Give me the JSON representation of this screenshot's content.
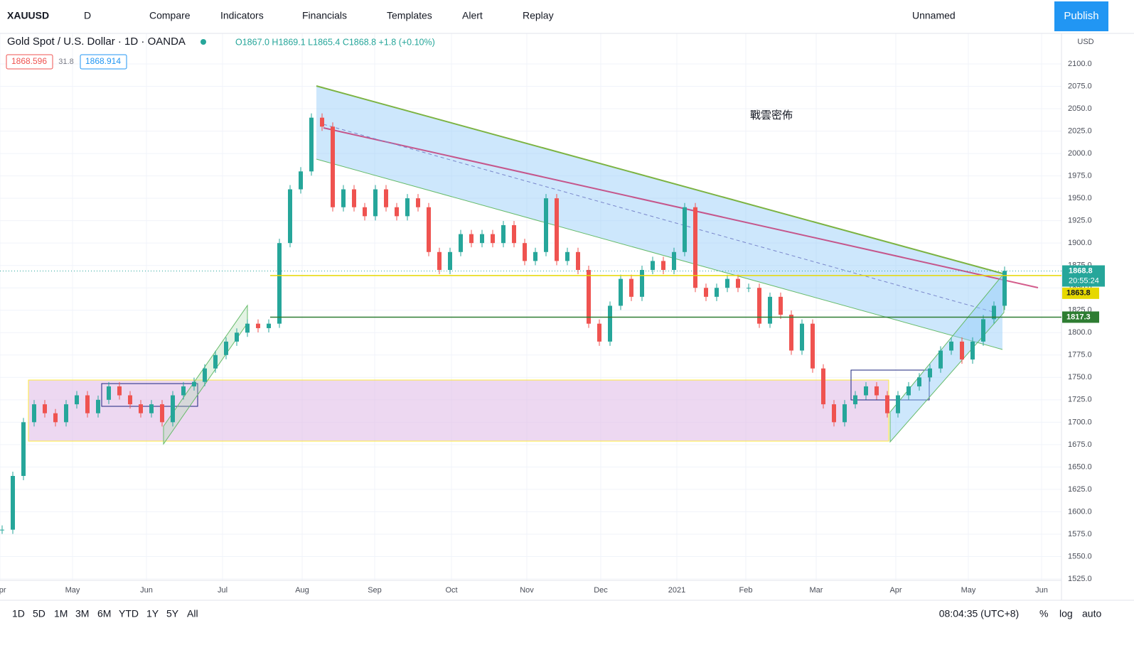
{
  "toolbar": {
    "symbol": "XAUUSD",
    "interval": "D",
    "buttons": [
      "Compare",
      "Indicators",
      "Financials",
      "Templates",
      "Alert",
      "Replay"
    ],
    "layout_name": "Unnamed",
    "publish": "Publish"
  },
  "legend": {
    "title": "Gold Spot / U.S. Dollar · 1D · OANDA",
    "ohlc": "O1867.0 H1869.1 L1865.4 C1868.8 +1.8 (+0.10%)",
    "bid": "1868.596",
    "spread": "31.8",
    "ask": "1868.914"
  },
  "chart_data": {
    "type": "candlestick",
    "closes": [
      1580,
      1640,
      1700,
      1720,
      1710,
      1700,
      1720,
      1730,
      1710,
      1725,
      1740,
      1730,
      1720,
      1710,
      1720,
      1700,
      1730,
      1740,
      1745,
      1760,
      1775,
      1790,
      1800,
      1810,
      1805,
      1810,
      1900,
      1960,
      1980,
      2040,
      2030,
      1940,
      1960,
      1940,
      1930,
      1960,
      1940,
      1930,
      1950,
      1940,
      1890,
      1870,
      1890,
      1910,
      1900,
      1910,
      1900,
      1920,
      1900,
      1880,
      1890,
      1950,
      1880,
      1890,
      1870,
      1810,
      1790,
      1830,
      1860,
      1840,
      1870,
      1880,
      1870,
      1890,
      1940,
      1850,
      1840,
      1850,
      1860,
      1850,
      1850,
      1810,
      1840,
      1820,
      1780,
      1810,
      1760,
      1720,
      1700,
      1720,
      1730,
      1740,
      1730,
      1710,
      1730,
      1740,
      1750,
      1760,
      1780,
      1790,
      1770,
      1790,
      1815,
      1830,
      1869
    ],
    "ylim": [
      1525,
      2100
    ],
    "yticks": [
      {
        "value": 1525,
        "label": "1525.0"
      },
      {
        "value": 1550,
        "label": "1550.0"
      },
      {
        "value": 1575,
        "label": "1575.0"
      },
      {
        "value": 1600,
        "label": "1600.0"
      },
      {
        "value": 1625,
        "label": "1625.0"
      },
      {
        "value": 1650,
        "label": "1650.0"
      },
      {
        "value": 1675,
        "label": "1675.0"
      },
      {
        "value": 1700,
        "label": "1700.0"
      },
      {
        "value": 1725,
        "label": "1725.0"
      },
      {
        "value": 1750,
        "label": "1750.0"
      },
      {
        "value": 1775,
        "label": "1775.0"
      },
      {
        "value": 1800,
        "label": "1800.0"
      },
      {
        "value": 1825,
        "label": "1825.0"
      },
      {
        "value": 1850,
        "label": "1850.0"
      },
      {
        "value": 1875,
        "label": "1875.0"
      },
      {
        "value": 1900,
        "label": "1900.0"
      },
      {
        "value": 1925,
        "label": "1925.0"
      },
      {
        "value": 1950,
        "label": "1950.0"
      },
      {
        "value": 1975,
        "label": "1975.0"
      },
      {
        "value": 2000,
        "label": "2000.0"
      },
      {
        "value": 2025,
        "label": "2025.0"
      },
      {
        "value": 2050,
        "label": "2050.0"
      },
      {
        "value": 2075,
        "label": "2075.0"
      },
      {
        "value": 2100,
        "label": "2100.0"
      }
    ],
    "currency": "USD",
    "xticks": [
      "Apr",
      "May",
      "Jun",
      "Jul",
      "Aug",
      "Sep",
      "Oct",
      "Nov",
      "Dec",
      "2021",
      "Feb",
      "Mar",
      "Apr",
      "May",
      "Jun"
    ],
    "price_lines": [
      {
        "value": 1863.8,
        "label": "1863.8",
        "color": "#e6d800"
      },
      {
        "value": 1817.3,
        "label": "1817.3",
        "color": "#2e7d32"
      }
    ],
    "last_price": {
      "value": 1868.8,
      "label": "1868.8"
    },
    "countdown": "20:55:24",
    "annotation": "戰雲密佈",
    "up_color": "#26a69a",
    "down_color": "#ef5350"
  },
  "bottom_bar": {
    "ranges": [
      "1D",
      "5D",
      "1M",
      "3M",
      "6M",
      "YTD",
      "1Y",
      "5Y",
      "All"
    ],
    "clock": "08:04:35 (UTC+8)",
    "options": [
      "%",
      "log",
      "auto"
    ]
  }
}
